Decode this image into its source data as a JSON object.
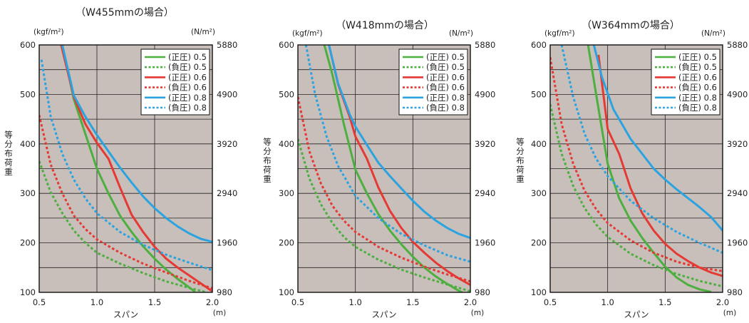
{
  "chart_data": [
    {
      "type": "line",
      "title": "（W455mmの場合）",
      "ylabel": "等分布荷重",
      "xlabel": "スパン",
      "x_unit": "(m)",
      "y_unit_left": "(kgf/m²)",
      "y_unit_right": "(N/m²)",
      "xlim": [
        0.5,
        2.0
      ],
      "ylim": [
        100,
        600
      ],
      "x_ticks": [
        "0.5",
        "1.0",
        "1.5",
        "2.0"
      ],
      "y_ticks_left": [
        "100",
        "200",
        "300",
        "400",
        "500",
        "600"
      ],
      "y_ticks_right": [
        "980",
        "1960",
        "2940",
        "3920",
        "4900",
        "5880"
      ],
      "grid": true,
      "legend_position": "top-right",
      "series": [
        {
          "name": "(正圧) 0.5",
          "color": "#4caf3f",
          "dashed": false,
          "points": [
            [
              0.7,
              600
            ],
            [
              0.8,
              490
            ],
            [
              0.9,
              420
            ],
            [
              1.0,
              350
            ],
            [
              1.1,
              300
            ],
            [
              1.2,
              255
            ],
            [
              1.3,
              222
            ],
            [
              1.4,
              193
            ],
            [
              1.5,
              168
            ],
            [
              1.6,
              146
            ],
            [
              1.7,
              127
            ],
            [
              1.8,
              110
            ],
            [
              1.85,
              101
            ]
          ]
        },
        {
          "name": "(負圧) 0.5",
          "color": "#4caf3f",
          "dashed": true,
          "points": [
            [
              0.5,
              365
            ],
            [
              0.6,
              302
            ],
            [
              0.7,
              260
            ],
            [
              0.8,
              225
            ],
            [
              0.9,
              200
            ],
            [
              1.0,
              180
            ],
            [
              1.2,
              158
            ],
            [
              1.4,
              139
            ],
            [
              1.6,
              122
            ],
            [
              1.8,
              109
            ],
            [
              1.95,
              100
            ]
          ]
        },
        {
          "name": "(正圧) 0.6",
          "color": "#e53a34",
          "dashed": false,
          "points": [
            [
              0.69,
              600
            ],
            [
              0.8,
              495
            ],
            [
              0.9,
              440
            ],
            [
              1.0,
              402
            ],
            [
              1.1,
              370
            ],
            [
              1.2,
              312
            ],
            [
              1.3,
              257
            ],
            [
              1.4,
              222
            ],
            [
              1.5,
              192
            ],
            [
              1.6,
              168
            ],
            [
              1.7,
              150
            ],
            [
              1.8,
              134
            ],
            [
              1.9,
              118
            ],
            [
              2.0,
              102
            ]
          ]
        },
        {
          "name": "(負圧) 0.6",
          "color": "#e53a34",
          "dashed": true,
          "points": [
            [
              0.5,
              458
            ],
            [
              0.6,
              358
            ],
            [
              0.7,
              300
            ],
            [
              0.8,
              255
            ],
            [
              0.9,
              228
            ],
            [
              1.0,
              207
            ],
            [
              1.2,
              180
            ],
            [
              1.4,
              158
            ],
            [
              1.6,
              140
            ],
            [
              1.8,
              123
            ],
            [
              2.0,
              108
            ]
          ]
        },
        {
          "name": "(正圧) 0.8",
          "color": "#2aa3e0",
          "dashed": false,
          "points": [
            [
              0.7,
              600
            ],
            [
              0.8,
              498
            ],
            [
              0.9,
              455
            ],
            [
              1.0,
              418
            ],
            [
              1.1,
              385
            ],
            [
              1.2,
              352
            ],
            [
              1.3,
              322
            ],
            [
              1.4,
              294
            ],
            [
              1.5,
              270
            ],
            [
              1.6,
              250
            ],
            [
              1.7,
              233
            ],
            [
              1.8,
              219
            ],
            [
              1.9,
              208
            ],
            [
              2.0,
              202
            ]
          ]
        },
        {
          "name": "(負圧) 0.8",
          "color": "#2aa3e0",
          "dashed": true,
          "points": [
            [
              0.52,
              570
            ],
            [
              0.6,
              455
            ],
            [
              0.7,
              380
            ],
            [
              0.8,
              328
            ],
            [
              0.9,
              290
            ],
            [
              1.0,
              260
            ],
            [
              1.2,
              222
            ],
            [
              1.4,
              196
            ],
            [
              1.6,
              176
            ],
            [
              1.8,
              160
            ],
            [
              2.0,
              145
            ]
          ]
        }
      ]
    },
    {
      "type": "line",
      "title": "（W418mmの場合）",
      "ylabel": "等分布荷重",
      "xlabel": "スパン",
      "x_unit": "(m)",
      "y_unit_left": "(kgf/m²)",
      "y_unit_right": "(N/m²)",
      "xlim": [
        0.5,
        2.0
      ],
      "ylim": [
        100,
        600
      ],
      "x_ticks": [
        "0.5",
        "1.0",
        "1.5",
        "2.0"
      ],
      "y_ticks_left": [
        "100",
        "200",
        "300",
        "400",
        "500",
        "600"
      ],
      "y_ticks_right": [
        "980",
        "1960",
        "2940",
        "3920",
        "4900",
        "5880"
      ],
      "grid": true,
      "legend_position": "top-right",
      "series": [
        {
          "name": "(正圧) 0.5",
          "color": "#4caf3f",
          "dashed": false,
          "points": [
            [
              0.73,
              600
            ],
            [
              0.8,
              540
            ],
            [
              0.9,
              440
            ],
            [
              1.0,
              348
            ],
            [
              1.1,
              300
            ],
            [
              1.2,
              258
            ],
            [
              1.3,
              225
            ],
            [
              1.4,
              197
            ],
            [
              1.5,
              172
            ],
            [
              1.6,
              150
            ],
            [
              1.7,
              132
            ],
            [
              1.8,
              117
            ],
            [
              1.9,
              103
            ],
            [
              1.93,
              100
            ]
          ]
        },
        {
          "name": "(負圧) 0.5",
          "color": "#4caf3f",
          "dashed": true,
          "points": [
            [
              0.5,
              410
            ],
            [
              0.6,
              330
            ],
            [
              0.7,
              278
            ],
            [
              0.8,
              240
            ],
            [
              0.9,
              212
            ],
            [
              1.0,
              192
            ],
            [
              1.2,
              166
            ],
            [
              1.4,
              146
            ],
            [
              1.6,
              130
            ],
            [
              1.8,
              116
            ],
            [
              2.0,
              102
            ]
          ]
        },
        {
          "name": "(正圧) 0.6",
          "color": "#e53a34",
          "dashed": false,
          "points": [
            [
              0.77,
              600
            ],
            [
              0.85,
              520
            ],
            [
              0.95,
              455
            ],
            [
              1.0,
              415
            ],
            [
              1.1,
              370
            ],
            [
              1.2,
              312
            ],
            [
              1.3,
              265
            ],
            [
              1.4,
              230
            ],
            [
              1.5,
              202
            ],
            [
              1.6,
              180
            ],
            [
              1.7,
              160
            ],
            [
              1.8,
              143
            ],
            [
              1.9,
              128
            ],
            [
              2.0,
              115
            ]
          ]
        },
        {
          "name": "(負圧) 0.6",
          "color": "#e53a34",
          "dashed": true,
          "points": [
            [
              0.5,
              495
            ],
            [
              0.6,
              385
            ],
            [
              0.7,
              320
            ],
            [
              0.8,
              275
            ],
            [
              0.9,
              245
            ],
            [
              1.0,
              222
            ],
            [
              1.2,
              192
            ],
            [
              1.4,
              170
            ],
            [
              1.6,
              152
            ],
            [
              1.8,
              136
            ],
            [
              2.0,
              122
            ]
          ]
        },
        {
          "name": "(正圧) 0.8",
          "color": "#2aa3e0",
          "dashed": false,
          "points": [
            [
              0.77,
              600
            ],
            [
              0.85,
              522
            ],
            [
              0.95,
              460
            ],
            [
              1.0,
              435
            ],
            [
              1.1,
              398
            ],
            [
              1.2,
              362
            ],
            [
              1.3,
              335
            ],
            [
              1.4,
              310
            ],
            [
              1.5,
              285
            ],
            [
              1.6,
              263
            ],
            [
              1.7,
              245
            ],
            [
              1.8,
              230
            ],
            [
              1.9,
              218
            ],
            [
              2.0,
              210
            ]
          ]
        },
        {
          "name": "(負圧) 0.8",
          "color": "#2aa3e0",
          "dashed": true,
          "points": [
            [
              0.57,
              600
            ],
            [
              0.65,
              500
            ],
            [
              0.75,
              415
            ],
            [
              0.85,
              355
            ],
            [
              1.0,
              295
            ],
            [
              1.2,
              250
            ],
            [
              1.4,
              218
            ],
            [
              1.6,
              195
            ],
            [
              1.8,
              175
            ],
            [
              2.0,
              162
            ]
          ]
        }
      ]
    },
    {
      "type": "line",
      "title": "（W364mmの場合）",
      "ylabel": "等分布荷重",
      "xlabel": "スパン",
      "x_unit": "(m)",
      "y_unit_left": "(kgf/m²)",
      "y_unit_right": "(N/m²)",
      "xlim": [
        0.5,
        2.0
      ],
      "ylim": [
        100,
        600
      ],
      "x_ticks": [
        "0.5",
        "1.0",
        "1.5",
        "2.0"
      ],
      "y_ticks_left": [
        "100",
        "200",
        "300",
        "400",
        "500",
        "600"
      ],
      "y_ticks_right": [
        "980",
        "1960",
        "2940",
        "3920",
        "4900",
        "5880"
      ],
      "grid": true,
      "legend_position": "top-right",
      "series": [
        {
          "name": "(正圧) 0.5",
          "color": "#4caf3f",
          "dashed": false,
          "points": [
            [
              0.83,
              600
            ],
            [
              0.9,
              500
            ],
            [
              1.0,
              360
            ],
            [
              1.1,
              290
            ],
            [
              1.2,
              245
            ],
            [
              1.3,
              210
            ],
            [
              1.4,
              180
            ],
            [
              1.5,
              152
            ],
            [
              1.6,
              130
            ],
            [
              1.7,
              115
            ],
            [
              1.8,
              106
            ],
            [
              1.9,
              101
            ]
          ]
        },
        {
          "name": "(負圧) 0.5",
          "color": "#4caf3f",
          "dashed": true,
          "points": [
            [
              0.5,
              480
            ],
            [
              0.6,
              380
            ],
            [
              0.7,
              315
            ],
            [
              0.8,
              270
            ],
            [
              0.9,
              237
            ],
            [
              1.0,
              212
            ],
            [
              1.2,
              178
            ],
            [
              1.4,
              155
            ],
            [
              1.6,
              137
            ],
            [
              1.8,
              123
            ],
            [
              2.0,
              112
            ]
          ]
        },
        {
          "name": "(正圧) 0.6",
          "color": "#e53a34",
          "dashed": false,
          "points": [
            [
              0.92,
              580
            ],
            [
              1.0,
              430
            ],
            [
              1.1,
              380
            ],
            [
              1.2,
              310
            ],
            [
              1.3,
              260
            ],
            [
              1.4,
              225
            ],
            [
              1.5,
              198
            ],
            [
              1.6,
              178
            ],
            [
              1.7,
              163
            ],
            [
              1.8,
              150
            ],
            [
              1.9,
              140
            ],
            [
              2.0,
              133
            ]
          ]
        },
        {
          "name": "(負圧) 0.6",
          "color": "#e53a34",
          "dashed": true,
          "points": [
            [
              0.5,
              575
            ],
            [
              0.6,
              440
            ],
            [
              0.7,
              360
            ],
            [
              0.8,
              305
            ],
            [
              0.9,
              268
            ],
            [
              1.0,
              240
            ],
            [
              1.2,
              205
            ],
            [
              1.4,
              180
            ],
            [
              1.6,
              162
            ],
            [
              1.8,
              150
            ],
            [
              2.0,
              143
            ]
          ]
        },
        {
          "name": "(正圧) 0.8",
          "color": "#2aa3e0",
          "dashed": false,
          "points": [
            [
              0.88,
              600
            ],
            [
              0.95,
              535
            ],
            [
              1.05,
              470
            ],
            [
              1.2,
              410
            ],
            [
              1.3,
              380
            ],
            [
              1.4,
              350
            ],
            [
              1.5,
              328
            ],
            [
              1.6,
              308
            ],
            [
              1.7,
              290
            ],
            [
              1.8,
              272
            ],
            [
              1.9,
              252
            ],
            [
              2.0,
              225
            ]
          ]
        },
        {
          "name": "(負圧) 0.8",
          "color": "#2aa3e0",
          "dashed": true,
          "points": [
            [
              0.6,
              600
            ],
            [
              0.7,
              495
            ],
            [
              0.8,
              420
            ],
            [
              0.9,
              370
            ],
            [
              1.0,
              335
            ],
            [
              1.2,
              285
            ],
            [
              1.4,
              250
            ],
            [
              1.6,
              222
            ],
            [
              1.8,
              200
            ],
            [
              2.0,
              180
            ]
          ]
        }
      ]
    }
  ]
}
